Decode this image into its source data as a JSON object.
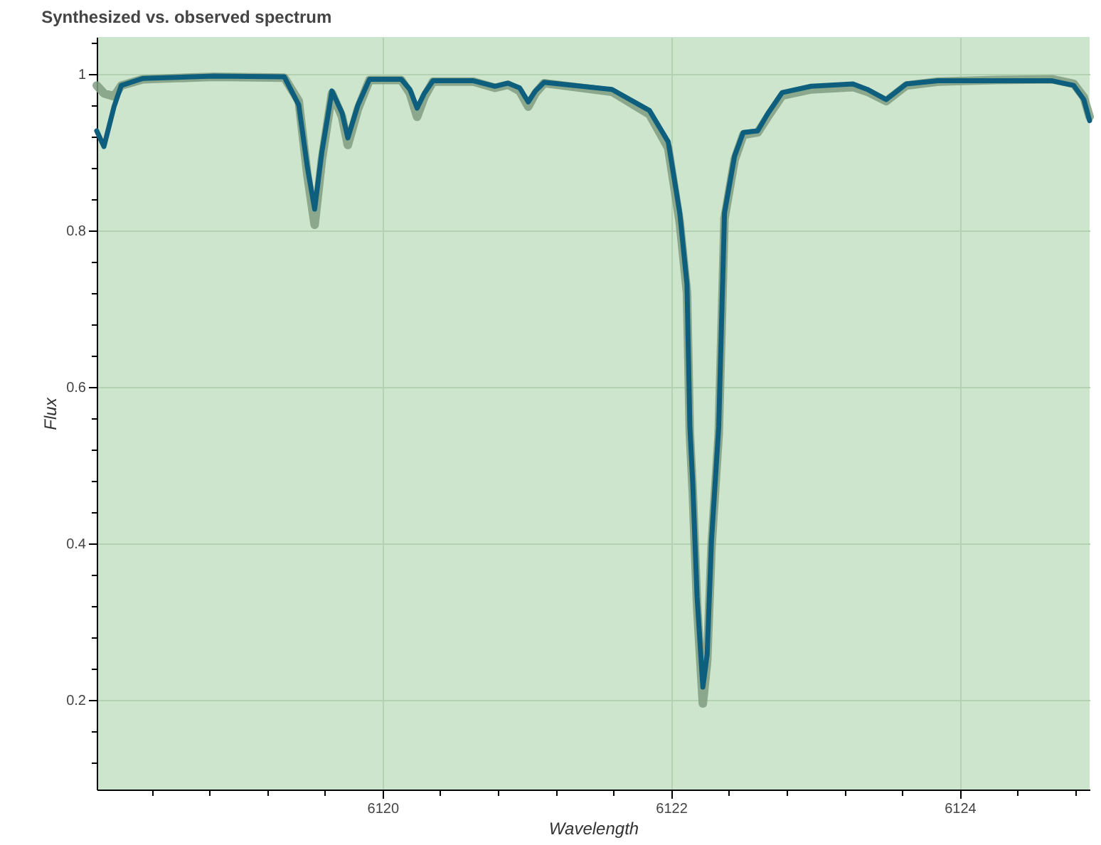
{
  "chart_data": {
    "type": "line",
    "title": "Synthesized vs. observed spectrum",
    "xlabel": "Wavelength",
    "ylabel": "Flux",
    "x": [
      6118.02,
      6118.07,
      6118.14,
      6118.19,
      6118.34,
      6118.83,
      6119.32,
      6119.42,
      6119.48,
      6119.53,
      6119.58,
      6119.65,
      6119.72,
      6119.76,
      6119.83,
      6119.91,
      6120.13,
      6120.19,
      6120.24,
      6120.29,
      6120.35,
      6120.63,
      6120.78,
      6120.87,
      6120.95,
      6121.01,
      6121.06,
      6121.12,
      6121.59,
      6121.85,
      6121.98,
      6122.06,
      6122.11,
      6122.13,
      6122.15,
      6122.18,
      6122.22,
      6122.25,
      6122.28,
      6122.33,
      6122.37,
      6122.44,
      6122.5,
      6122.6,
      6122.67,
      6122.77,
      6122.97,
      6123.26,
      6123.36,
      6123.49,
      6123.63,
      6123.85,
      6124.25,
      6124.64,
      6124.79,
      6124.86,
      6124.9
    ],
    "series": [
      {
        "color": "#7f9d80",
        "values": [
          0.985,
          0.975,
          0.971,
          0.985,
          0.993,
          0.996,
          0.995,
          0.965,
          0.87,
          0.807,
          0.89,
          0.975,
          0.945,
          0.909,
          0.955,
          0.992,
          0.992,
          0.975,
          0.945,
          0.97,
          0.99,
          0.99,
          0.982,
          0.986,
          0.978,
          0.958,
          0.975,
          0.988,
          0.977,
          0.948,
          0.905,
          0.81,
          0.72,
          0.54,
          0.465,
          0.32,
          0.195,
          0.25,
          0.395,
          0.54,
          0.815,
          0.89,
          0.922,
          0.925,
          0.945,
          0.972,
          0.98,
          0.983,
          0.977,
          0.965,
          0.985,
          0.99,
          0.992,
          0.993,
          0.987,
          0.97,
          0.945
        ]
      },
      {
        "color": "#0e5f7d",
        "values": [
          0.927,
          0.907,
          0.958,
          0.985,
          0.994,
          0.997,
          0.996,
          0.96,
          0.88,
          0.827,
          0.9,
          0.978,
          0.95,
          0.918,
          0.96,
          0.993,
          0.993,
          0.98,
          0.956,
          0.975,
          0.991,
          0.991,
          0.984,
          0.988,
          0.982,
          0.964,
          0.978,
          0.989,
          0.98,
          0.953,
          0.913,
          0.822,
          0.731,
          0.549,
          0.476,
          0.331,
          0.216,
          0.258,
          0.404,
          0.549,
          0.822,
          0.895,
          0.925,
          0.927,
          0.949,
          0.976,
          0.984,
          0.987,
          0.98,
          0.967,
          0.987,
          0.991,
          0.991,
          0.991,
          0.985,
          0.967,
          0.94
        ]
      }
    ],
    "xlim": [
      6118.02,
      6124.9
    ],
    "ylim": [
      0.085,
      1.047
    ],
    "xticks": [
      {
        "value": 6118.4,
        "label": null
      },
      {
        "value": 6118.8,
        "label": null
      },
      {
        "value": 6119.2,
        "label": null
      },
      {
        "value": 6119.6,
        "label": null
      },
      6120,
      {
        "value": 6120.4,
        "label": null
      },
      {
        "value": 6120.8,
        "label": null
      },
      {
        "value": 6121.2,
        "label": null
      },
      {
        "value": 6121.6,
        "label": null
      },
      6122,
      {
        "value": 6122.4,
        "label": null
      },
      {
        "value": 6122.8,
        "label": null
      },
      {
        "value": 6123.2,
        "label": null
      },
      {
        "value": 6123.6,
        "label": null
      },
      6124,
      {
        "value": 6124.4,
        "label": null
      },
      {
        "value": 6124.8,
        "label": null
      }
    ],
    "yticks": [
      {
        "value": 0.12,
        "label": null
      },
      {
        "value": 0.16,
        "label": null
      },
      0.2,
      {
        "value": 0.24,
        "label": null
      },
      {
        "value": 0.28,
        "label": null
      },
      {
        "value": 0.32,
        "label": null
      },
      {
        "value": 0.36,
        "label": null
      },
      0.4,
      {
        "value": 0.44,
        "label": null
      },
      {
        "value": 0.48,
        "label": null
      },
      {
        "value": 0.52,
        "label": null
      },
      {
        "value": 0.56,
        "label": null
      },
      0.6,
      {
        "value": 0.64,
        "label": null
      },
      {
        "value": 0.68,
        "label": null
      },
      {
        "value": 0.72,
        "label": null
      },
      {
        "value": 0.76,
        "label": null
      },
      0.8,
      {
        "value": 0.84,
        "label": null
      },
      {
        "value": 0.88,
        "label": null
      },
      {
        "value": 0.92,
        "label": null
      },
      {
        "value": 0.96,
        "label": null
      },
      1,
      {
        "value": 1.04,
        "label": null
      }
    ],
    "grid": true
  }
}
